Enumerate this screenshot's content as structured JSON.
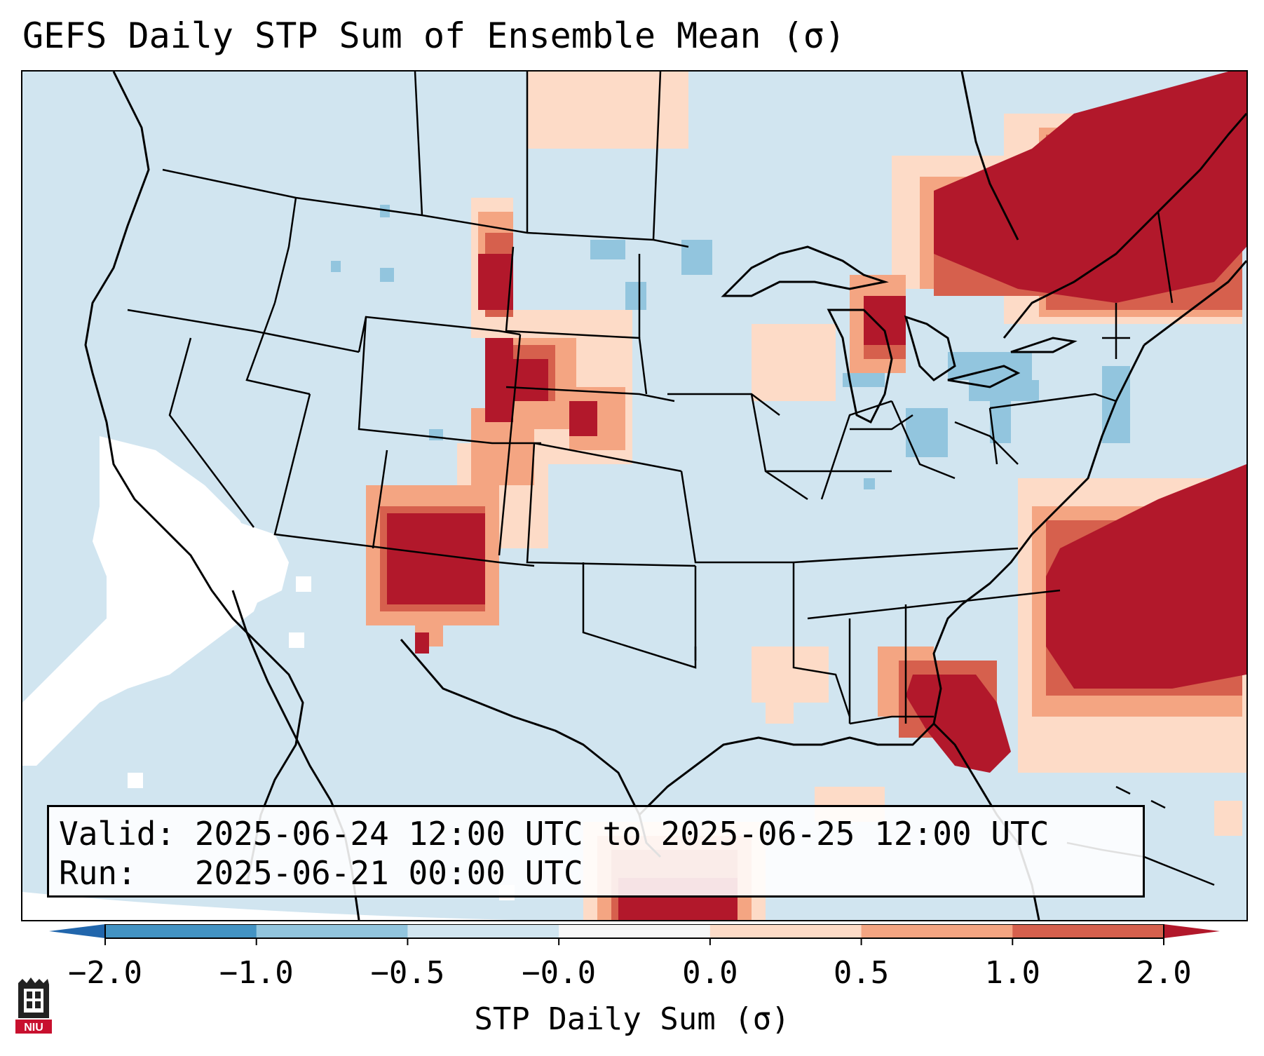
{
  "title": "GEFS Daily STP Sum of Ensemble Mean (σ)",
  "info": {
    "valid_line": "Valid: 2025-06-24 12:00 UTC to 2025-06-25 12:00 UTC",
    "run_line": "Run:   2025-06-21 00:00 UTC"
  },
  "colorbar": {
    "label": "STP Daily Sum (σ)",
    "ticks": [
      "−2.0",
      "−1.0",
      "−0.5",
      "−0.0",
      "0.0",
      "0.5",
      "1.0",
      "2.0"
    ],
    "bins": [
      {
        "from": "-2.0",
        "to": "-1.0",
        "color": "#4393c3"
      },
      {
        "from": "-1.0",
        "to": "-0.5",
        "color": "#92c5de"
      },
      {
        "from": "-0.5",
        "to": "-0.0",
        "color": "#d1e5f0"
      },
      {
        "from": "-0.0",
        "to": "0.0",
        "color": "#f7f7f7"
      },
      {
        "from": "0.0",
        "to": "0.5",
        "color": "#fddbc7"
      },
      {
        "from": "0.5",
        "to": "1.0",
        "color": "#f4a582"
      },
      {
        "from": "1.0",
        "to": "2.0",
        "color": "#d6604d"
      }
    ],
    "under_color": "#2166ac",
    "over_color": "#b2182b"
  },
  "map": {
    "region": "Continental United States",
    "background_color": "#d1e5f0"
  },
  "logo": {
    "text": "NIU",
    "color": "#c8102e"
  }
}
